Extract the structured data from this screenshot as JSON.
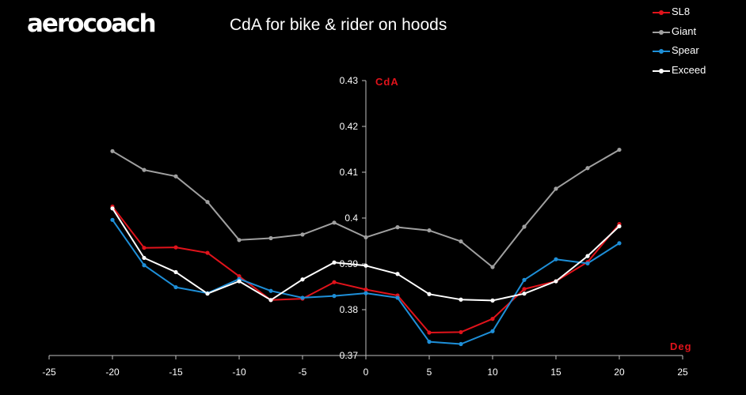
{
  "brand": "aerocoach",
  "chart_data": {
    "type": "line",
    "title": "CdA for bike & rider on hoods",
    "xlabel": "Deg",
    "ylabel": "CdA",
    "xlim": [
      -25,
      25
    ],
    "ylim": [
      0.37,
      0.43
    ],
    "x_ticks": [
      "-25",
      "-20",
      "-15",
      "-10",
      "-5",
      "0",
      "5",
      "10",
      "15",
      "20",
      "25"
    ],
    "y_ticks": [
      "0.37",
      "0.38",
      "0.39",
      "0.4",
      "0.41",
      "0.42",
      "0.43"
    ],
    "grid": false,
    "legend_position": "top-right",
    "x": [
      -20,
      -17.5,
      -15,
      -12.5,
      -10,
      -7.5,
      -5,
      -2.5,
      0,
      2.5,
      5,
      7.5,
      10,
      12.5,
      15,
      17.5,
      20
    ],
    "series": [
      {
        "name": "SL8",
        "color": "#e0131b",
        "values": [
          0.4025,
          0.3935,
          0.3936,
          0.3924,
          0.3873,
          0.3821,
          0.3824,
          0.386,
          0.3844,
          0.3831,
          0.375,
          0.3751,
          0.378,
          0.3845,
          0.3862,
          0.3904,
          0.3987
        ]
      },
      {
        "name": "Giant",
        "color": "#a0a0a0",
        "values": [
          0.4146,
          0.4105,
          0.4091,
          0.4035,
          0.3952,
          0.3956,
          0.3964,
          0.399,
          0.3958,
          0.398,
          0.3973,
          0.3949,
          0.3893,
          0.3981,
          0.4064,
          0.4109,
          0.4149
        ]
      },
      {
        "name": "Spear",
        "color": "#1e8fd8",
        "values": [
          0.3996,
          0.3897,
          0.3849,
          0.3836,
          0.3867,
          0.3841,
          0.3826,
          0.383,
          0.3836,
          0.3826,
          0.373,
          0.3725,
          0.3753,
          0.3865,
          0.391,
          0.3901,
          0.3945
        ]
      },
      {
        "name": "Exceed",
        "color": "#ffffff",
        "values": [
          0.4021,
          0.3913,
          0.3882,
          0.3835,
          0.3862,
          0.3821,
          0.3866,
          0.3903,
          0.3896,
          0.3878,
          0.3834,
          0.3822,
          0.382,
          0.3835,
          0.3862,
          0.3917,
          0.3982
        ]
      }
    ]
  }
}
